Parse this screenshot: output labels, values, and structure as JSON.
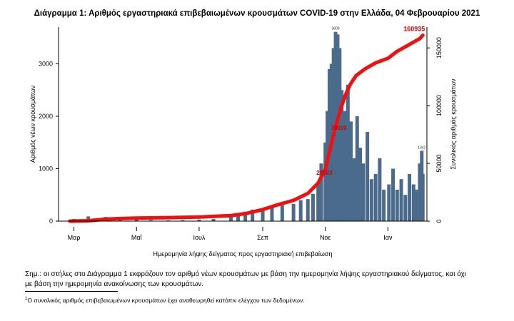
{
  "colors": {
    "bar": "#4a6b8c",
    "cumulative": "#ee1111",
    "annotation": "#d00000"
  },
  "chart_data": {
    "type": "bar",
    "title": "Διάγραμμα 1: Αριθμός εργαστηριακά επιβεβαιωμένων κρουσμάτων COVID-19 στην Ελλάδα, 04 Φεβρουαρίου 2021",
    "xlabel": "Ημερομηνία λήψης δείγματος προς εργαστηριακή επιβεβαίωση",
    "ylabel_left": "Αριθμός νέων κρουσμάτων",
    "ylabel_right": "Συνολικός αριθμός κρουσμάτων",
    "x_ticks": [
      "Μαρ",
      "Μαΐ",
      "Ιουλ",
      "Σεπ",
      "Νοε",
      "Ιαν"
    ],
    "y_ticks_left": [
      0,
      1000,
      2000,
      3000
    ],
    "y_ticks_right": [
      0,
      50000,
      100000,
      150000
    ],
    "ylim_left": [
      0,
      3700
    ],
    "ylim_right": [
      0,
      168000
    ],
    "x_range": [
      "2020-02-15",
      "2021-02-08"
    ],
    "grid": false,
    "series": [
      {
        "kind": "bar",
        "axis": "left",
        "x": [
          "2020-03-01",
          "2020-03-15",
          "2020-04-01",
          "2020-04-15",
          "2020-05-01",
          "2020-05-15",
          "2020-06-01",
          "2020-06-15",
          "2020-07-01",
          "2020-07-15",
          "2020-08-01",
          "2020-08-08",
          "2020-08-15",
          "2020-08-22",
          "2020-09-01",
          "2020-09-10",
          "2020-09-20",
          "2020-10-01",
          "2020-10-08",
          "2020-10-15",
          "2020-10-20",
          "2020-10-25",
          "2020-10-28",
          "2020-11-01",
          "2020-11-03",
          "2020-11-05",
          "2020-11-07",
          "2020-11-09",
          "2020-11-11",
          "2020-11-13",
          "2020-11-15",
          "2020-11-17",
          "2020-11-20",
          "2020-11-23",
          "2020-11-26",
          "2020-11-29",
          "2020-12-02",
          "2020-12-05",
          "2020-12-08",
          "2020-12-12",
          "2020-12-16",
          "2020-12-20",
          "2020-12-24",
          "2020-12-28",
          "2021-01-02",
          "2021-01-06",
          "2021-01-10",
          "2021-01-14",
          "2021-01-18",
          "2021-01-22",
          "2021-01-26",
          "2021-01-29",
          "2021-02-01",
          "2021-02-03",
          "2021-02-04"
        ],
        "values": [
          40,
          90,
          80,
          60,
          40,
          20,
          15,
          20,
          30,
          40,
          90,
          130,
          180,
          220,
          250,
          280,
          300,
          330,
          400,
          420,
          520,
          700,
          1100,
          1500,
          2100,
          2900,
          3000,
          3300,
          3609,
          3560,
          3300,
          2500,
          2100,
          2600,
          1900,
          1200,
          2000,
          1400,
          1100,
          1700,
          800,
          900,
          1200,
          600,
          700,
          1000,
          600,
          800,
          500,
          900,
          700,
          600,
          1100,
          1342,
          900
        ],
        "labels": [
          {
            "x": "2020-11-11",
            "y": 3609,
            "text": "3609"
          },
          {
            "x": "2021-02-03",
            "y": 1342,
            "text": "1342"
          }
        ]
      },
      {
        "kind": "line",
        "axis": "right",
        "x": [
          "2020-02-26",
          "2020-03-15",
          "2020-04-01",
          "2020-04-15",
          "2020-05-01",
          "2020-06-01",
          "2020-07-01",
          "2020-08-01",
          "2020-08-15",
          "2020-09-01",
          "2020-09-15",
          "2020-10-01",
          "2020-10-15",
          "2020-10-25",
          "2020-11-01",
          "2020-11-05",
          "2020-11-09",
          "2020-11-13",
          "2020-11-17",
          "2020-11-21",
          "2020-11-25",
          "2020-12-01",
          "2020-12-10",
          "2020-12-20",
          "2021-01-01",
          "2021-01-10",
          "2021-01-20",
          "2021-02-01",
          "2021-02-04"
        ],
        "values": [
          0,
          300,
          1700,
          2200,
          2600,
          3000,
          3500,
          4800,
          6500,
          10000,
          14000,
          18000,
          24000,
          33000,
          45000,
          60000,
          75000,
          88000,
          100000,
          110000,
          118000,
          126000,
          132000,
          137000,
          141000,
          147000,
          152000,
          158000,
          160935
        ],
        "labels": [
          {
            "x": "2021-02-04",
            "y": 160935,
            "text": "160935"
          },
          {
            "x": "2020-11-14",
            "y": 79000,
            "text": "79010"
          },
          {
            "x": "2020-10-31",
            "y": 40000,
            "text": "29983"
          }
        ]
      }
    ]
  },
  "notes": {
    "main_line1": "Σημ.: οι στήλες στο Διάγραμμα 1 εκφράζουν τον αριθμό νέων κρουσμάτων με βάση την ημερομηνία λήψης εργαστηριακού δείγματος, και όχι",
    "main_line2": "με βάση την ημερομηνία ανακοίνωσης των κρουσμάτων.",
    "footnote_mark": "1",
    "footnote_text": "Ο συνολικός αριθμός επιβεβαιωμένων κρουσμάτων έχει αναθεωρηθεί κατόπιν ελέγχου των δεδομένων."
  }
}
